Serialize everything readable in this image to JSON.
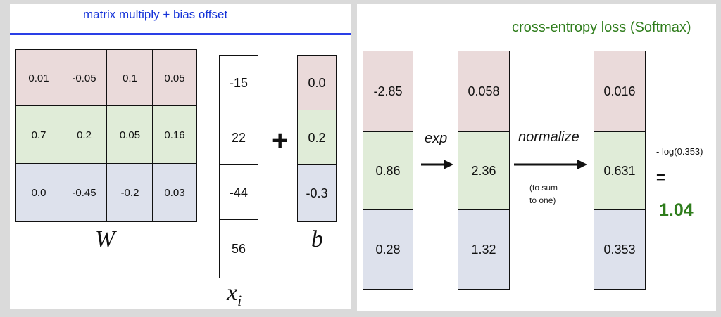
{
  "left_title": "matrix multiply + bias offset",
  "right_title": "cross-entropy loss (Softmax)",
  "W": {
    "label": "W",
    "rows": [
      [
        "0.01",
        "-0.05",
        "0.1",
        "0.05"
      ],
      [
        "0.7",
        "0.2",
        "0.05",
        "0.16"
      ],
      [
        "0.0",
        "-0.45",
        "-0.2",
        "0.03"
      ]
    ]
  },
  "x": {
    "label": "x",
    "subscript": "i",
    "values": [
      "-15",
      "22",
      "-44",
      "56"
    ]
  },
  "plus_sign": "+",
  "b": {
    "label": "b",
    "values": [
      "0.0",
      "0.2",
      "-0.3"
    ]
  },
  "scores": [
    "-2.85",
    "0.86",
    "0.28"
  ],
  "exp_label": "exp",
  "exp_values": [
    "0.058",
    "2.36",
    "1.32"
  ],
  "normalize_label": "normalize",
  "normalize_note_line1": "(to sum",
  "normalize_note_line2": "to one)",
  "probabilities": [
    "0.016",
    "0.631",
    "0.353"
  ],
  "loss": {
    "expression": "- log(0.353)",
    "equals": "=",
    "value": "1.04"
  },
  "colors": {
    "title_blue": "#1533d8",
    "title_green": "#2f7d1c",
    "row_red": "#eadada",
    "row_green": "#e0ecd8",
    "row_blue": "#dde1ec"
  }
}
